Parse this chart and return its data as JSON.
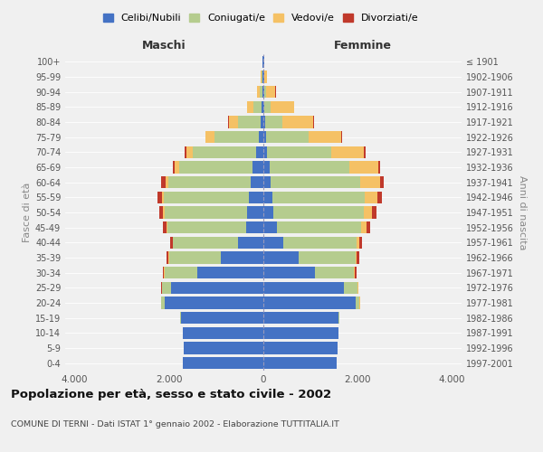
{
  "age_groups": [
    "0-4",
    "5-9",
    "10-14",
    "15-19",
    "20-24",
    "25-29",
    "30-34",
    "35-39",
    "40-44",
    "45-49",
    "50-54",
    "55-59",
    "60-64",
    "65-69",
    "70-74",
    "75-79",
    "80-84",
    "85-89",
    "90-94",
    "95-99",
    "100+"
  ],
  "birth_years": [
    "1997-2001",
    "1992-1996",
    "1987-1991",
    "1982-1986",
    "1977-1981",
    "1972-1976",
    "1967-1971",
    "1962-1966",
    "1957-1961",
    "1952-1956",
    "1947-1951",
    "1942-1946",
    "1937-1941",
    "1932-1936",
    "1927-1931",
    "1922-1926",
    "1917-1921",
    "1912-1916",
    "1907-1911",
    "1902-1906",
    "≤ 1901"
  ],
  "males": {
    "celibi": [
      1700,
      1680,
      1700,
      1750,
      2100,
      1950,
      1400,
      900,
      530,
      360,
      340,
      310,
      270,
      230,
      150,
      90,
      50,
      30,
      20,
      15,
      10
    ],
    "coniugati": [
      0,
      0,
      0,
      5,
      60,
      200,
      700,
      1100,
      1380,
      1680,
      1750,
      1800,
      1750,
      1550,
      1350,
      950,
      480,
      180,
      50,
      20,
      10
    ],
    "vedovi": [
      0,
      0,
      0,
      0,
      5,
      5,
      5,
      5,
      10,
      20,
      30,
      40,
      60,
      90,
      130,
      180,
      200,
      130,
      60,
      20,
      5
    ],
    "divorziati": [
      0,
      0,
      0,
      0,
      5,
      10,
      30,
      40,
      50,
      60,
      80,
      90,
      80,
      50,
      30,
      15,
      10,
      5,
      0,
      0,
      0
    ]
  },
  "females": {
    "nubili": [
      1550,
      1580,
      1600,
      1600,
      1950,
      1700,
      1100,
      750,
      420,
      280,
      220,
      190,
      160,
      130,
      80,
      50,
      30,
      20,
      15,
      10,
      10
    ],
    "coniugate": [
      0,
      0,
      0,
      10,
      90,
      300,
      820,
      1200,
      1550,
      1800,
      1900,
      1950,
      1900,
      1700,
      1350,
      900,
      380,
      130,
      40,
      15,
      5
    ],
    "vedove": [
      0,
      0,
      0,
      0,
      5,
      5,
      15,
      30,
      60,
      100,
      180,
      280,
      420,
      600,
      700,
      700,
      650,
      500,
      200,
      50,
      5
    ],
    "divorziate": [
      0,
      0,
      0,
      0,
      5,
      15,
      40,
      50,
      60,
      80,
      100,
      100,
      80,
      50,
      30,
      20,
      15,
      10,
      5,
      0,
      0
    ]
  },
  "colors": {
    "celibi": "#4472C4",
    "coniugati": "#B5CC8E",
    "vedovi": "#F5C165",
    "divorziati": "#C0392B"
  },
  "title": "Popolazione per età, sesso e stato civile - 2002",
  "subtitle": "COMUNE DI TERNI - Dati ISTAT 1° gennaio 2002 - Elaborazione TUTTITALIA.IT",
  "xlabel_left": "Maschi",
  "xlabel_right": "Femmine",
  "ylabel_left": "Fasce di età",
  "ylabel_right": "Anni di nascita",
  "background_color": "#f0f0f0",
  "xlim": 4200
}
